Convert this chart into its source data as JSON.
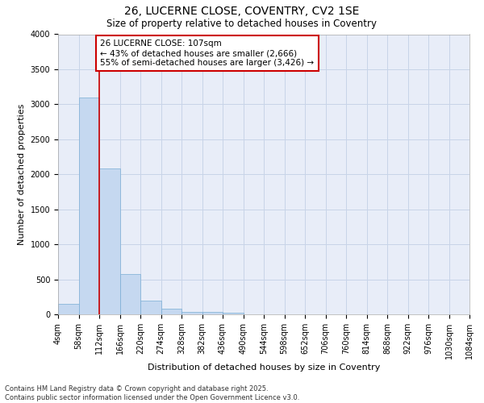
{
  "title_line1": "26, LUCERNE CLOSE, COVENTRY, CV2 1SE",
  "title_line2": "Size of property relative to detached houses in Coventry",
  "xlabel": "Distribution of detached houses by size in Coventry",
  "ylabel": "Number of detached properties",
  "bins": [
    4,
    58,
    112,
    166,
    220,
    274,
    328,
    382,
    436,
    490,
    544,
    598,
    652,
    706,
    760,
    814,
    868,
    922,
    976,
    1030,
    1084
  ],
  "counts": [
    150,
    3100,
    2080,
    580,
    200,
    80,
    40,
    40,
    20,
    0,
    0,
    0,
    0,
    0,
    0,
    0,
    0,
    0,
    0,
    0
  ],
  "bar_color": "#c5d8f0",
  "bar_edge_color": "#7aadd4",
  "red_line_x": 112,
  "annotation_text": "26 LUCERNE CLOSE: 107sqm\n← 43% of detached houses are smaller (2,666)\n55% of semi-detached houses are larger (3,426) →",
  "annotation_box_facecolor": "#ffffff",
  "annotation_box_edgecolor": "#cc0000",
  "ylim": [
    0,
    4000
  ],
  "yticks": [
    0,
    500,
    1000,
    1500,
    2000,
    2500,
    3000,
    3500,
    4000
  ],
  "footer_line1": "Contains HM Land Registry data © Crown copyright and database right 2025.",
  "footer_line2": "Contains public sector information licensed under the Open Government Licence v3.0.",
  "grid_color": "#c8d4e8",
  "background_color": "#e8edf8",
  "title1_fontsize": 10,
  "title2_fontsize": 8.5,
  "ylabel_fontsize": 8,
  "xlabel_fontsize": 8,
  "tick_fontsize": 7,
  "footer_fontsize": 6,
  "annot_fontsize": 7.5
}
